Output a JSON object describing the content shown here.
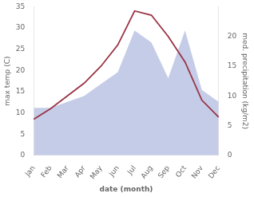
{
  "chart_data": {
    "type": "line",
    "categories": [
      "Jan",
      "Feb",
      "Mar",
      "Apr",
      "May",
      "Jun",
      "Jul",
      "Aug",
      "Sep",
      "Oct",
      "Nov",
      "Dec"
    ],
    "series": [
      {
        "type": "line",
        "color": "#993344",
        "values": [
          8.5,
          11.0,
          14.0,
          17.0,
          21.0,
          26.0,
          34.0,
          33.0,
          28.0,
          22.0,
          13.0,
          9.0
        ]
      },
      {
        "type": "area",
        "color": "#c5cce8",
        "axis": "y2",
        "values": [
          8.0,
          8.0,
          9.0,
          10.0,
          12.0,
          14.0,
          21.0,
          19.0,
          13.0,
          21.0,
          11.0,
          9.0
        ]
      }
    ],
    "xlabel": "date (month)",
    "ylabel": "max temp (C)",
    "y2label": "med. precipitation (kg/m2)",
    "ylim": [
      0,
      35
    ],
    "yticks": [
      0,
      5,
      10,
      15,
      20,
      25,
      30,
      35
    ],
    "y2lim": [
      0,
      25
    ],
    "y2ticks": [
      0,
      5,
      10,
      15,
      20
    ],
    "grid": false
  }
}
